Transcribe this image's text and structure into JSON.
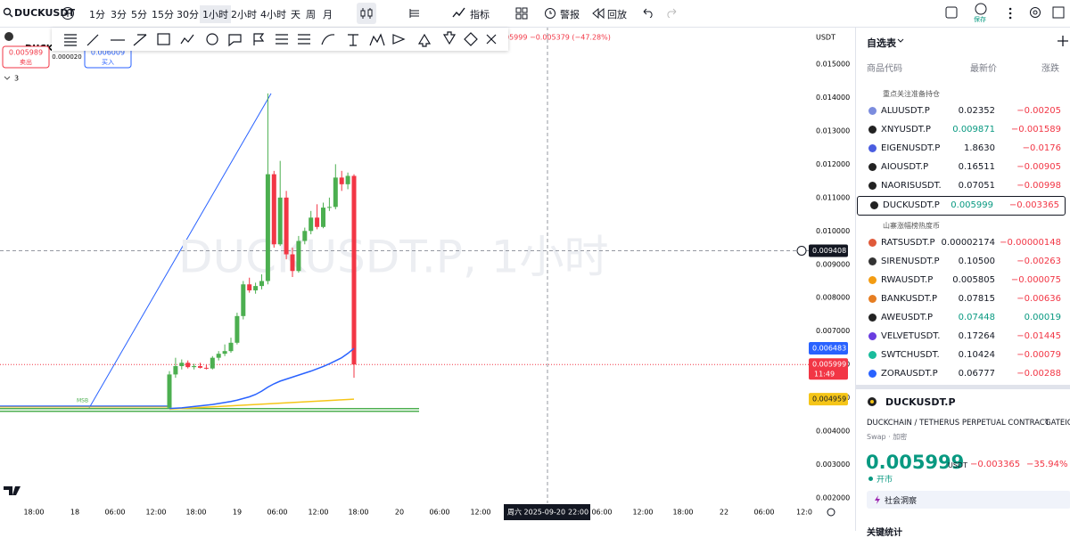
{
  "toolbar": {
    "symbol": "DUCKUSDT",
    "intervals": [
      "1分",
      "3分",
      "5分",
      "15分",
      "30分",
      "1小时",
      "2小时",
      "4小时",
      "天",
      "周",
      "月"
    ],
    "indicators": "指标",
    "alerts": "警报",
    "replay": "回放",
    "save": "保存"
  },
  "legend": {
    "symbol": "DUCKC",
    "sell_price": "0.005989",
    "sell": "卖出",
    "spread": "0.000020",
    "buy_price": "0.006009",
    "buy": "买入",
    "indicator_count": "3",
    "change": "05999 −0.005379 (−47.28%)"
  },
  "chart": {
    "type": "candlestick",
    "watermark": "DUCKUSDT.P, 1小时",
    "currency": "USDT",
    "ylim": [
      0.00144,
      0.01612
    ],
    "yticks": [
      {
        "value": 0.015,
        "label": "0.015000"
      },
      {
        "value": 0.014,
        "label": "0.014000"
      },
      {
        "value": 0.013,
        "label": "0.013000"
      },
      {
        "value": 0.012,
        "label": "0.012000"
      },
      {
        "value": 0.011,
        "label": "0.011000"
      },
      {
        "value": 0.01,
        "label": "0.010000"
      },
      {
        "value": 0.009,
        "label": "0.009000"
      },
      {
        "value": 0.008,
        "label": "0.008000"
      },
      {
        "value": 0.007,
        "label": "0.007000"
      },
      {
        "value": 0.006,
        "label": "0.006000"
      },
      {
        "value": 0.005,
        "label": "0.005000"
      },
      {
        "value": 0.004,
        "label": "0.004000"
      },
      {
        "value": 0.003,
        "label": "0.003000"
      },
      {
        "value": 0.002,
        "label": "0.002000"
      }
    ],
    "candles": [
      [
        0.0047,
        0.0058,
        0.00468,
        0.0057
      ],
      [
        0.0057,
        0.0062,
        0.0056,
        0.00595
      ],
      [
        0.00595,
        0.00615,
        0.00585,
        0.00605
      ],
      [
        0.00605,
        0.00612,
        0.00588,
        0.00592
      ],
      [
        0.00592,
        0.00602,
        0.00585,
        0.00595
      ],
      [
        0.00595,
        0.00605,
        0.00588,
        0.0059
      ],
      [
        0.0059,
        0.006,
        0.00585,
        0.00588
      ],
      [
        0.00588,
        0.00625,
        0.00585,
        0.0062
      ],
      [
        0.0062,
        0.0064,
        0.00612,
        0.00632
      ],
      [
        0.00632,
        0.0066,
        0.00625,
        0.0064
      ],
      [
        0.0064,
        0.0068,
        0.00635,
        0.00665
      ],
      [
        0.00665,
        0.00755,
        0.0066,
        0.00745
      ],
      [
        0.00745,
        0.0085,
        0.00735,
        0.0084
      ],
      [
        0.0084,
        0.0086,
        0.00815,
        0.00822
      ],
      [
        0.00822,
        0.00845,
        0.00812,
        0.00835
      ],
      [
        0.00835,
        0.0087,
        0.00825,
        0.0085
      ],
      [
        0.0085,
        0.01412,
        0.0084,
        0.0117
      ],
      [
        0.0117,
        0.0118,
        0.0095,
        0.0096
      ],
      [
        0.0096,
        0.0121,
        0.00955,
        0.011
      ],
      [
        0.011,
        0.0112,
        0.00915,
        0.0093
      ],
      [
        0.0093,
        0.0095,
        0.00862,
        0.0088
      ],
      [
        0.0088,
        0.00985,
        0.00875,
        0.0097
      ],
      [
        0.0097,
        0.0101,
        0.0096,
        0.01
      ],
      [
        0.01,
        0.0106,
        0.0099,
        0.0104
      ],
      [
        0.0104,
        0.0108,
        0.01005,
        0.01012
      ],
      [
        0.01012,
        0.01085,
        0.01008,
        0.0107
      ],
      [
        0.0107,
        0.011,
        0.0106,
        0.01072
      ],
      [
        0.01072,
        0.012,
        0.01065,
        0.0116
      ],
      [
        0.0116,
        0.0118,
        0.0112,
        0.0114
      ],
      [
        0.0114,
        0.01175,
        0.01125,
        0.01165
      ],
      [
        0.01165,
        0.0117,
        0.0056,
        0.005999
      ]
    ],
    "ma_blue": {
      "color": "#2962ff",
      "values": [
        0.00468,
        0.00469,
        0.0047,
        0.00472,
        0.00474,
        0.00476,
        0.00478,
        0.0048,
        0.00483,
        0.00486,
        0.00489,
        0.00493,
        0.00498,
        0.00503,
        0.0051,
        0.0052,
        0.00532,
        0.00542,
        0.0055,
        0.00556,
        0.00562,
        0.00568,
        0.00574,
        0.0058,
        0.00587,
        0.00594,
        0.00602,
        0.00611,
        0.0062,
        0.00633,
        0.006483
      ]
    },
    "ma_yellow": {
      "color": "#f5c518",
      "values": [
        0.00466,
        0.00467,
        0.00468,
        0.00469,
        0.0047,
        0.00471,
        0.00472,
        0.00473,
        0.00474,
        0.00475,
        0.00476,
        0.00477,
        0.00478,
        0.00479,
        0.0048,
        0.00481,
        0.00482,
        0.00483,
        0.00484,
        0.00485,
        0.00486,
        0.00487,
        0.00488,
        0.00489,
        0.0049,
        0.00491,
        0.00492,
        0.00493,
        0.00494,
        0.00495,
        0.004959
      ]
    },
    "crosshair_price": 0.009408,
    "last_price": 0.005999,
    "countdown": "11:49",
    "ma_blue_last": 0.006483,
    "ma_yellow_last": 0.004959,
    "msb": "MSB",
    "time_labels": [
      "18:00",
      "18",
      "06:00",
      "12:00",
      "18:00",
      "19",
      "06:00",
      "12:00",
      "18:00",
      "20",
      "06:00",
      "12:00",
      "06:00",
      "12:00",
      "18:00",
      "22",
      "06:00",
      "12:0"
    ],
    "crosshair_time": {
      "day": "周六 2025-09-20",
      "time": "22:00"
    }
  },
  "watchlist": {
    "title": "自选表",
    "columns": [
      "商品代码",
      "最新价",
      "涨跌"
    ],
    "sections": [
      {
        "name": "重点关注准备持仓",
        "rows": [
          [
            "ALUUSDT.P",
            "0.02352",
            "−0.00205"
          ],
          [
            "XNYUSDT.P",
            "0.009871",
            "−0.001589"
          ],
          [
            "EIGENUSDT.P",
            "1.8630",
            "−0.0176"
          ],
          [
            "AIOUSDT.P",
            "0.16511",
            "−0.00905"
          ],
          [
            "NAORISUSDT.",
            "0.07051",
            "−0.00998"
          ],
          [
            "DUCKUSDT.P",
            "0.005999",
            "−0.003365"
          ]
        ]
      },
      {
        "name": "山寨涨幅榜热度币",
        "rows": [
          [
            "RATSUSDT.P",
            "0.00002174",
            "−0.00000148"
          ],
          [
            "SIRENUSDT.P",
            "0.10500",
            "−0.00263"
          ],
          [
            "RWAUSDT.P",
            "0.005805",
            "−0.000075"
          ],
          [
            "BANKUSDT.P",
            "0.07815",
            "−0.00636"
          ],
          [
            "AWEUSDT.P",
            "0.07448",
            "0.00019"
          ],
          [
            "VELVETUSDT.",
            "0.17264",
            "−0.01445"
          ],
          [
            "SWTCHUSDT.",
            "0.10424",
            "−0.00079"
          ],
          [
            "ZORAUSDT.P",
            "0.06777",
            "−0.00288"
          ]
        ]
      }
    ]
  },
  "details": {
    "symbol": "DUCKUSDT.P",
    "description": "DUCKCHAIN / TETHERUS PERPETUAL CONTRACT",
    "exchange": "GATEIO",
    "category": "Swap · 加密",
    "price": "0.005999",
    "currency": "USDT",
    "change": "−0.003365",
    "change_percent": "−35.94%",
    "market_status": "开市",
    "insight": "社会洞察",
    "key_stats": "关键统计"
  }
}
